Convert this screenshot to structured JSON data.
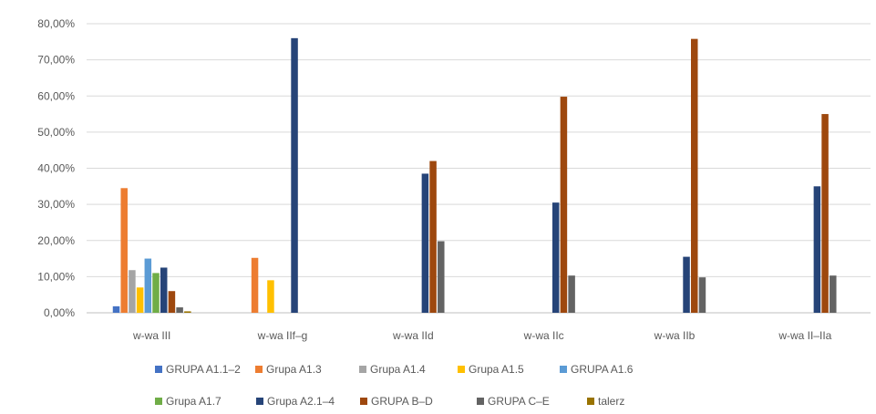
{
  "chart_data": {
    "type": "bar",
    "categories": [
      "w-wa III",
      "w-wa IIf–g",
      "w-wa IId",
      "w-wa IIc",
      "w-wa IIb",
      "w-wa II–IIa"
    ],
    "ylim": [
      0,
      80
    ],
    "yticks": [
      "0,00%",
      "10,00%",
      "20,00%",
      "30,00%",
      "40,00%",
      "50,00%",
      "60,00%",
      "70,00%",
      "80,00%"
    ],
    "grid": true,
    "legend_position": "bottom",
    "series": [
      {
        "name": "GRUPA A1.1–2",
        "color": "#4472c4",
        "values": [
          1.8,
          0,
          0,
          0,
          0,
          0
        ]
      },
      {
        "name": "Grupa A1.3",
        "color": "#ed7d31",
        "values": [
          34.5,
          15.2,
          0,
          0,
          0,
          0
        ]
      },
      {
        "name": "Grupa A1.4",
        "color": "#a5a5a5",
        "values": [
          11.8,
          0,
          0,
          0,
          0,
          0
        ]
      },
      {
        "name": "Grupa A1.5",
        "color": "#ffc000",
        "values": [
          7.0,
          9.0,
          0,
          0,
          0,
          0
        ]
      },
      {
        "name": "GRUPA A1.6",
        "color": "#5b9bd5",
        "values": [
          15.0,
          0,
          0,
          0,
          0,
          0
        ]
      },
      {
        "name": "Grupa A1.7",
        "color": "#70ad47",
        "values": [
          11.0,
          0,
          0,
          0,
          0,
          0
        ]
      },
      {
        "name": "Grupa A2.1–4",
        "color": "#264478",
        "values": [
          12.5,
          76.0,
          38.5,
          30.5,
          15.5,
          35.0
        ]
      },
      {
        "name": "GRUPA B–D",
        "color": "#9e480e",
        "values": [
          6.0,
          0,
          42.0,
          59.8,
          75.8,
          55.0
        ]
      },
      {
        "name": "GRUPA C–E",
        "color": "#636363",
        "values": [
          1.5,
          0,
          19.8,
          10.3,
          9.8,
          10.3
        ]
      },
      {
        "name": "talerz",
        "color": "#997300",
        "values": [
          0.4,
          0,
          0,
          0,
          0,
          0
        ]
      }
    ]
  }
}
